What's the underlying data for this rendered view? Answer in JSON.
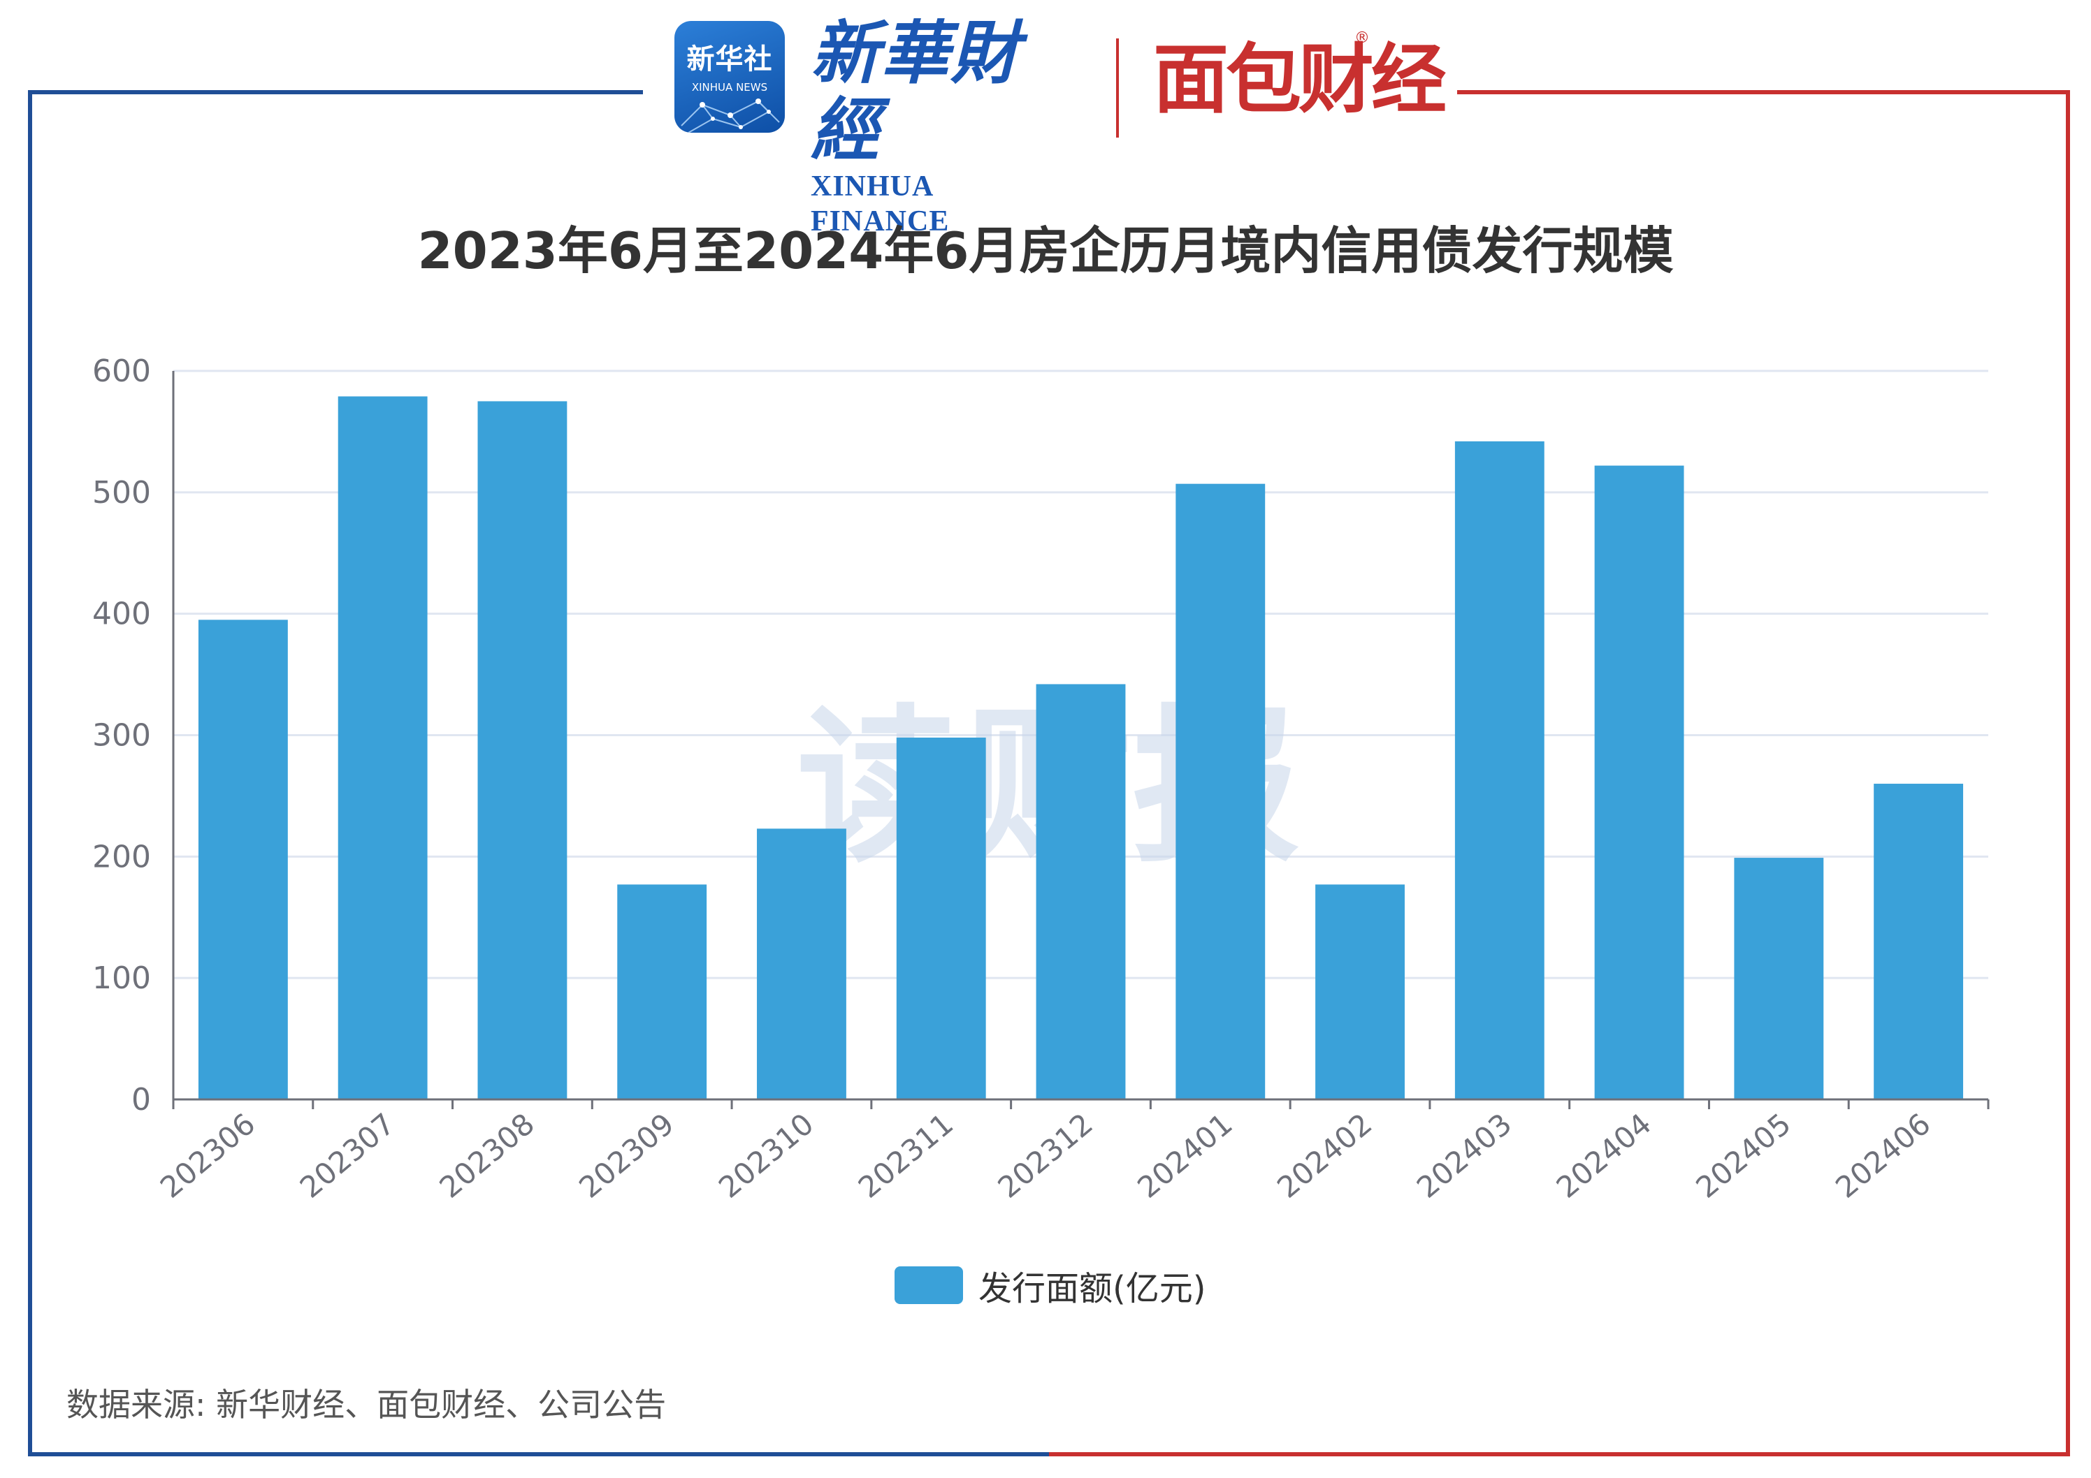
{
  "logos": {
    "xinhua_news_cn": "新华社",
    "xinhua_news_en": "XINHUA NEWS",
    "xinhua_finance_cn": "新華財經",
    "xinhua_finance_en": "XINHUA FINANCE",
    "mianbao_caijing": "面包财经",
    "registered_mark": "®"
  },
  "watermark": "读财报",
  "source": "数据来源: 新华财经、面包财经、公司公告",
  "colors": {
    "bar": "#3aa1d9",
    "frame_blue": "#1f4e96",
    "frame_red": "#c8302f",
    "grid": "#e0e6f1",
    "axis": "#6e7079"
  },
  "chart_data": {
    "type": "bar",
    "title": "2023年6月至2024年6月房企历月境内信用债发行规模",
    "categories": [
      "202306",
      "202307",
      "202308",
      "202309",
      "202310",
      "202311",
      "202312",
      "202401",
      "202402",
      "202403",
      "202404",
      "202405",
      "202406"
    ],
    "series": [
      {
        "name": "发行面额(亿元)",
        "values": [
          395,
          579,
          575,
          177,
          223,
          298,
          342,
          507,
          177,
          542,
          522,
          199,
          260
        ]
      }
    ],
    "ylim": [
      0,
      600
    ],
    "yticks": [
      0,
      100,
      200,
      300,
      400,
      500,
      600
    ],
    "xlabel": "",
    "ylabel": "",
    "grid": true,
    "legend_position": "bottom-center"
  }
}
